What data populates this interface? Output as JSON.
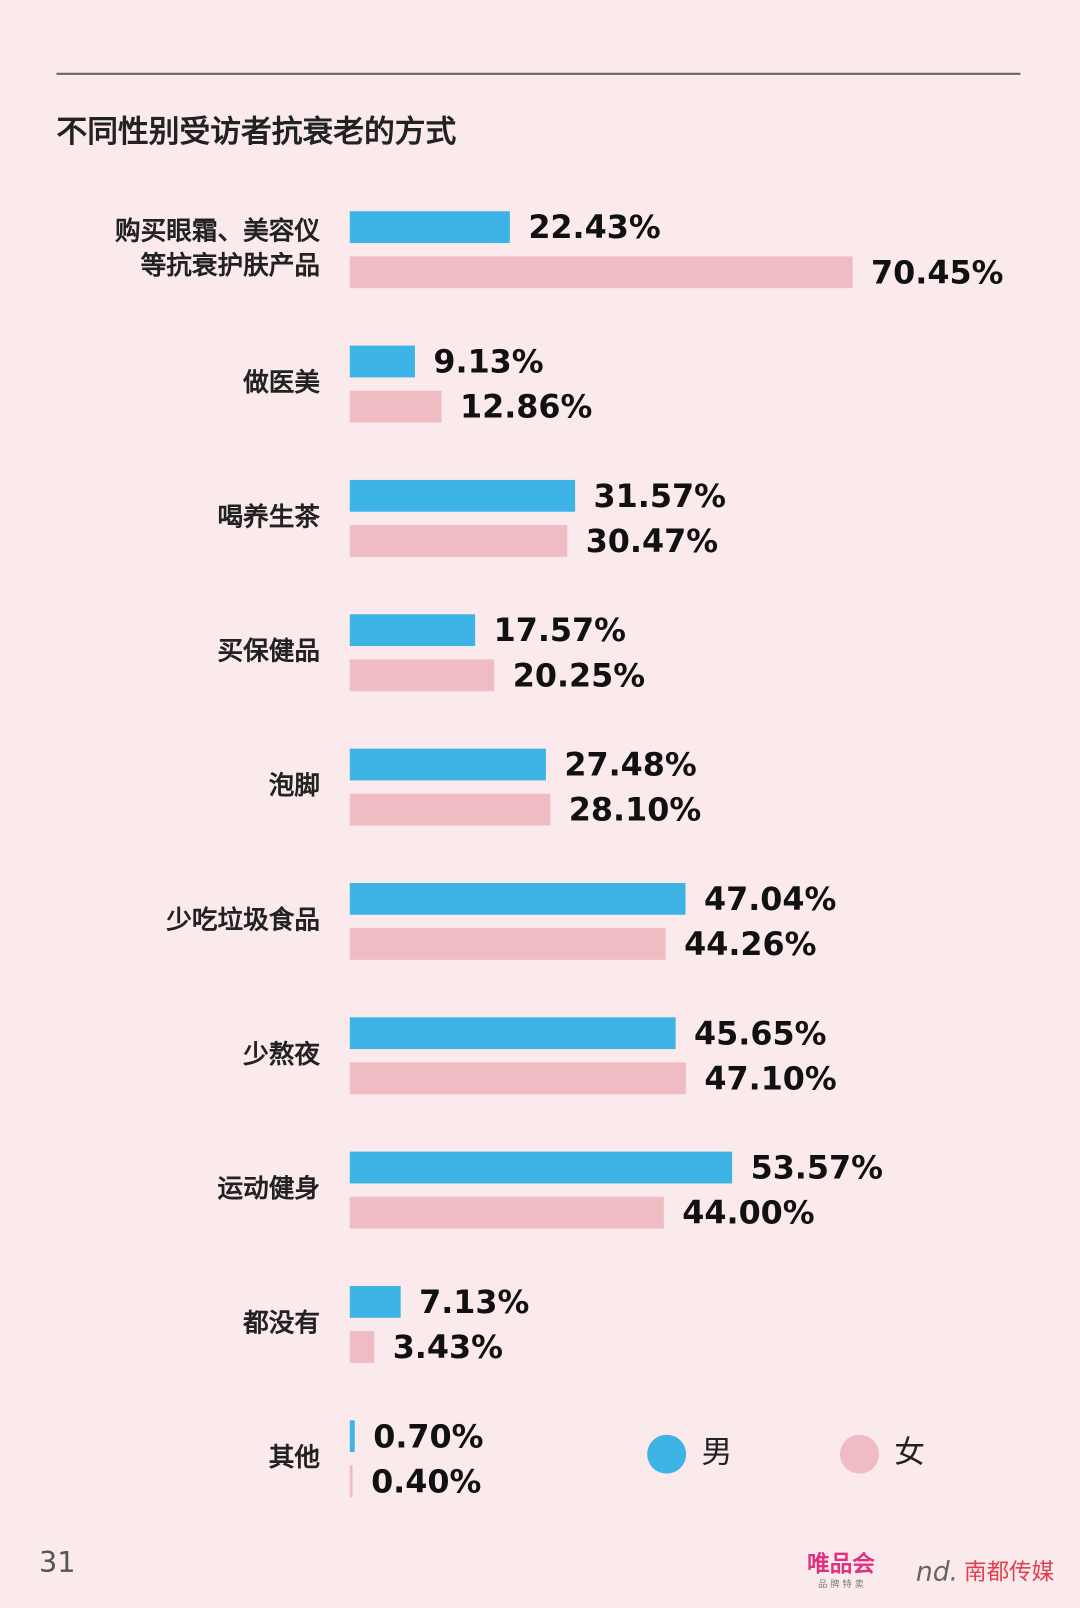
{
  "chart_data": {
    "type": "bar",
    "orientation": "horizontal",
    "title": "不同性别受访者抗衰老的方式",
    "categories": [
      "购买眼霜、美容仪\n等抗衰护肤产品",
      "做医美",
      "喝养生茶",
      "买保健品",
      "泡脚",
      "少吃垃圾食品",
      "少熬夜",
      "运动健身",
      "都没有",
      "其他"
    ],
    "series": [
      {
        "name": "男",
        "color": "#3db3e6",
        "values": [
          22.43,
          9.13,
          31.57,
          17.57,
          27.48,
          47.04,
          45.65,
          53.57,
          7.13,
          0.7
        ],
        "value_labels": [
          "22.43%",
          "9.13%",
          "31.57%",
          "17.57%",
          "27.48%",
          "47.04%",
          "45.65%",
          "53.57%",
          "7.13%",
          "0.70%"
        ]
      },
      {
        "name": "女",
        "color": "#efbcc4",
        "values": [
          70.45,
          12.86,
          30.47,
          20.25,
          28.1,
          44.26,
          47.1,
          44.0,
          3.43,
          0.4
        ],
        "value_labels": [
          "70.45%",
          "12.86%",
          "30.47%",
          "20.25%",
          "28.10%",
          "44.26%",
          "47.10%",
          "44.00%",
          "3.43%",
          "0.40%"
        ]
      }
    ]
  },
  "footer": {
    "page": "31",
    "logo_1": "唯品会",
    "logo_1_sub": "品 牌 特 卖",
    "logo_2": "南都传媒"
  }
}
